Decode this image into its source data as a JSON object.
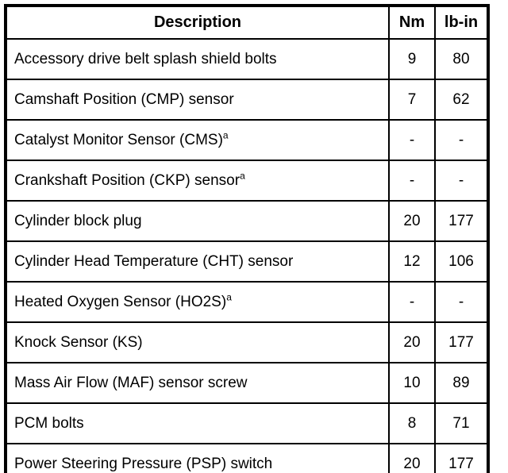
{
  "table": {
    "header": {
      "description": "Description",
      "nm": "Nm",
      "lbin": "lb-in"
    },
    "rows": [
      {
        "description": "Accessory drive belt splash shield bolts",
        "footnote": "",
        "nm": "9",
        "lbin": "80"
      },
      {
        "description": "Camshaft Position (CMP) sensor",
        "footnote": "",
        "nm": "7",
        "lbin": "62"
      },
      {
        "description": "Catalyst Monitor Sensor (CMS)",
        "footnote": "a",
        "nm": "-",
        "lbin": "-"
      },
      {
        "description": "Crankshaft Position (CKP) sensor",
        "footnote": "a",
        "nm": "-",
        "lbin": "-"
      },
      {
        "description": "Cylinder block plug",
        "footnote": "",
        "nm": "20",
        "lbin": "177"
      },
      {
        "description": "Cylinder Head Temperature (CHT) sensor",
        "footnote": "",
        "nm": "12",
        "lbin": "106"
      },
      {
        "description": "Heated Oxygen Sensor (HO2S)",
        "footnote": "a",
        "nm": "-",
        "lbin": "-"
      },
      {
        "description": "Knock Sensor (KS)",
        "footnote": "",
        "nm": "20",
        "lbin": "177"
      },
      {
        "description": "Mass Air Flow (MAF) sensor screw",
        "footnote": "",
        "nm": "10",
        "lbin": "89"
      },
      {
        "description": "PCM bolts",
        "footnote": "",
        "nm": "8",
        "lbin": "71"
      },
      {
        "description": "Power Steering Pressure (PSP) switch",
        "footnote": "",
        "nm": "20",
        "lbin": "177"
      }
    ],
    "colors": {
      "border": "#000000",
      "background": "#ffffff",
      "text": "#000000"
    }
  }
}
